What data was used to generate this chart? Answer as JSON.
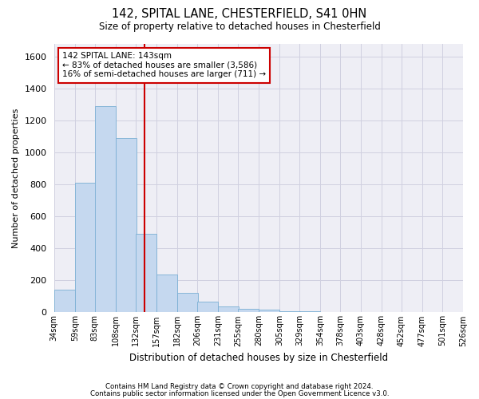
{
  "title1": "142, SPITAL LANE, CHESTERFIELD, S41 0HN",
  "title2": "Size of property relative to detached houses in Chesterfield",
  "xlabel": "Distribution of detached houses by size in Chesterfield",
  "ylabel": "Number of detached properties",
  "footer1": "Contains HM Land Registry data © Crown copyright and database right 2024.",
  "footer2": "Contains public sector information licensed under the Open Government Licence v3.0.",
  "annotation_title": "142 SPITAL LANE: 143sqm",
  "annotation_line1": "← 83% of detached houses are smaller (3,586)",
  "annotation_line2": "16% of semi-detached houses are larger (711) →",
  "bar_color": "#c5d8ef",
  "bar_edge_color": "#7aafd4",
  "grid_color": "#d0d0e0",
  "vline_color": "#cc0000",
  "annotation_box_color": "#ffffff",
  "annotation_box_edge": "#cc0000",
  "bins": [
    34,
    59,
    83,
    108,
    132,
    157,
    182,
    206,
    231,
    255,
    280,
    305,
    329,
    354,
    378,
    403,
    428,
    452,
    477,
    501,
    526
  ],
  "counts": [
    140,
    810,
    1290,
    1090,
    490,
    235,
    120,
    65,
    35,
    20,
    15,
    8,
    5,
    3,
    2,
    1,
    1,
    0,
    0,
    1
  ],
  "vline_x": 143,
  "ylim": [
    0,
    1680
  ],
  "yticks": [
    0,
    200,
    400,
    600,
    800,
    1000,
    1200,
    1400,
    1600
  ],
  "bg_color": "#ffffff",
  "plot_bg_color": "#eeeef5"
}
